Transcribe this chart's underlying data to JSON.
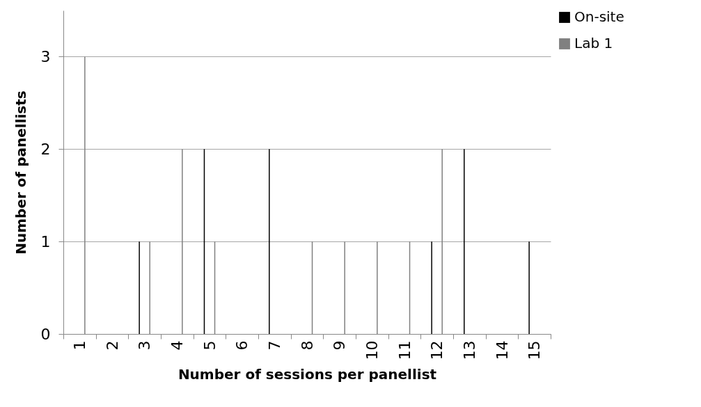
{
  "chart_data": {
    "type": "bar",
    "xlabel": "Number of sessions per panellist",
    "ylabel": "Number of panellists",
    "categories": [
      "1",
      "2",
      "3",
      "4",
      "5",
      "6",
      "7",
      "8",
      "9",
      "10",
      "11",
      "12",
      "13",
      "14",
      "15"
    ],
    "series": [
      {
        "name": "On-site",
        "color": "#000000",
        "values": [
          0,
          0,
          1,
          0,
          2,
          0,
          2,
          0,
          0,
          0,
          0,
          1,
          2,
          0,
          1
        ]
      },
      {
        "name": "Lab 1",
        "color": "#808080",
        "values": [
          3,
          0,
          1,
          2,
          1,
          0,
          0,
          1,
          1,
          1,
          1,
          2,
          0,
          0,
          0
        ]
      }
    ],
    "ylim": [
      0,
      3.5
    ],
    "yticks": [
      0,
      1,
      2,
      3
    ],
    "grid": "y",
    "legend": "right"
  }
}
